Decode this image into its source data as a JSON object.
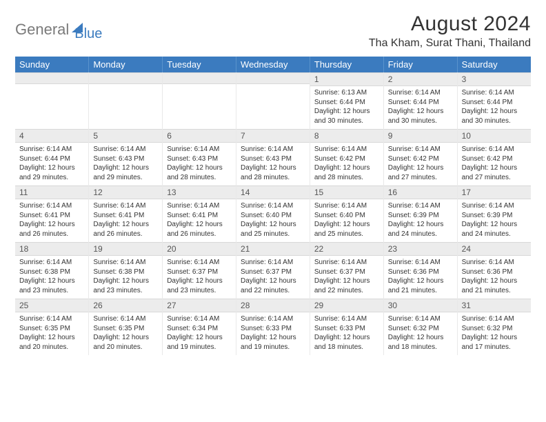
{
  "logo": {
    "part1": "General",
    "part2": "Blue"
  },
  "title": "August 2024",
  "location": "Tha Kham, Surat Thani, Thailand",
  "colors": {
    "header_bg": "#3b7bbf",
    "header_text": "#ffffff",
    "daynum_bg": "#ececec",
    "body_text": "#333333",
    "logo_gray": "#7a7a7a",
    "logo_blue": "#3b7bbf"
  },
  "day_labels": [
    "Sunday",
    "Monday",
    "Tuesday",
    "Wednesday",
    "Thursday",
    "Friday",
    "Saturday"
  ],
  "weeks": [
    [
      {
        "blank": true
      },
      {
        "blank": true
      },
      {
        "blank": true
      },
      {
        "blank": true
      },
      {
        "n": "1",
        "sunrise": "Sunrise: 6:13 AM",
        "sunset": "Sunset: 6:44 PM",
        "daylight": "Daylight: 12 hours and 30 minutes."
      },
      {
        "n": "2",
        "sunrise": "Sunrise: 6:14 AM",
        "sunset": "Sunset: 6:44 PM",
        "daylight": "Daylight: 12 hours and 30 minutes."
      },
      {
        "n": "3",
        "sunrise": "Sunrise: 6:14 AM",
        "sunset": "Sunset: 6:44 PM",
        "daylight": "Daylight: 12 hours and 30 minutes."
      }
    ],
    [
      {
        "n": "4",
        "sunrise": "Sunrise: 6:14 AM",
        "sunset": "Sunset: 6:44 PM",
        "daylight": "Daylight: 12 hours and 29 minutes."
      },
      {
        "n": "5",
        "sunrise": "Sunrise: 6:14 AM",
        "sunset": "Sunset: 6:43 PM",
        "daylight": "Daylight: 12 hours and 29 minutes."
      },
      {
        "n": "6",
        "sunrise": "Sunrise: 6:14 AM",
        "sunset": "Sunset: 6:43 PM",
        "daylight": "Daylight: 12 hours and 28 minutes."
      },
      {
        "n": "7",
        "sunrise": "Sunrise: 6:14 AM",
        "sunset": "Sunset: 6:43 PM",
        "daylight": "Daylight: 12 hours and 28 minutes."
      },
      {
        "n": "8",
        "sunrise": "Sunrise: 6:14 AM",
        "sunset": "Sunset: 6:42 PM",
        "daylight": "Daylight: 12 hours and 28 minutes."
      },
      {
        "n": "9",
        "sunrise": "Sunrise: 6:14 AM",
        "sunset": "Sunset: 6:42 PM",
        "daylight": "Daylight: 12 hours and 27 minutes."
      },
      {
        "n": "10",
        "sunrise": "Sunrise: 6:14 AM",
        "sunset": "Sunset: 6:42 PM",
        "daylight": "Daylight: 12 hours and 27 minutes."
      }
    ],
    [
      {
        "n": "11",
        "sunrise": "Sunrise: 6:14 AM",
        "sunset": "Sunset: 6:41 PM",
        "daylight": "Daylight: 12 hours and 26 minutes."
      },
      {
        "n": "12",
        "sunrise": "Sunrise: 6:14 AM",
        "sunset": "Sunset: 6:41 PM",
        "daylight": "Daylight: 12 hours and 26 minutes."
      },
      {
        "n": "13",
        "sunrise": "Sunrise: 6:14 AM",
        "sunset": "Sunset: 6:41 PM",
        "daylight": "Daylight: 12 hours and 26 minutes."
      },
      {
        "n": "14",
        "sunrise": "Sunrise: 6:14 AM",
        "sunset": "Sunset: 6:40 PM",
        "daylight": "Daylight: 12 hours and 25 minutes."
      },
      {
        "n": "15",
        "sunrise": "Sunrise: 6:14 AM",
        "sunset": "Sunset: 6:40 PM",
        "daylight": "Daylight: 12 hours and 25 minutes."
      },
      {
        "n": "16",
        "sunrise": "Sunrise: 6:14 AM",
        "sunset": "Sunset: 6:39 PM",
        "daylight": "Daylight: 12 hours and 24 minutes."
      },
      {
        "n": "17",
        "sunrise": "Sunrise: 6:14 AM",
        "sunset": "Sunset: 6:39 PM",
        "daylight": "Daylight: 12 hours and 24 minutes."
      }
    ],
    [
      {
        "n": "18",
        "sunrise": "Sunrise: 6:14 AM",
        "sunset": "Sunset: 6:38 PM",
        "daylight": "Daylight: 12 hours and 23 minutes."
      },
      {
        "n": "19",
        "sunrise": "Sunrise: 6:14 AM",
        "sunset": "Sunset: 6:38 PM",
        "daylight": "Daylight: 12 hours and 23 minutes."
      },
      {
        "n": "20",
        "sunrise": "Sunrise: 6:14 AM",
        "sunset": "Sunset: 6:37 PM",
        "daylight": "Daylight: 12 hours and 23 minutes."
      },
      {
        "n": "21",
        "sunrise": "Sunrise: 6:14 AM",
        "sunset": "Sunset: 6:37 PM",
        "daylight": "Daylight: 12 hours and 22 minutes."
      },
      {
        "n": "22",
        "sunrise": "Sunrise: 6:14 AM",
        "sunset": "Sunset: 6:37 PM",
        "daylight": "Daylight: 12 hours and 22 minutes."
      },
      {
        "n": "23",
        "sunrise": "Sunrise: 6:14 AM",
        "sunset": "Sunset: 6:36 PM",
        "daylight": "Daylight: 12 hours and 21 minutes."
      },
      {
        "n": "24",
        "sunrise": "Sunrise: 6:14 AM",
        "sunset": "Sunset: 6:36 PM",
        "daylight": "Daylight: 12 hours and 21 minutes."
      }
    ],
    [
      {
        "n": "25",
        "sunrise": "Sunrise: 6:14 AM",
        "sunset": "Sunset: 6:35 PM",
        "daylight": "Daylight: 12 hours and 20 minutes."
      },
      {
        "n": "26",
        "sunrise": "Sunrise: 6:14 AM",
        "sunset": "Sunset: 6:35 PM",
        "daylight": "Daylight: 12 hours and 20 minutes."
      },
      {
        "n": "27",
        "sunrise": "Sunrise: 6:14 AM",
        "sunset": "Sunset: 6:34 PM",
        "daylight": "Daylight: 12 hours and 19 minutes."
      },
      {
        "n": "28",
        "sunrise": "Sunrise: 6:14 AM",
        "sunset": "Sunset: 6:33 PM",
        "daylight": "Daylight: 12 hours and 19 minutes."
      },
      {
        "n": "29",
        "sunrise": "Sunrise: 6:14 AM",
        "sunset": "Sunset: 6:33 PM",
        "daylight": "Daylight: 12 hours and 18 minutes."
      },
      {
        "n": "30",
        "sunrise": "Sunrise: 6:14 AM",
        "sunset": "Sunset: 6:32 PM",
        "daylight": "Daylight: 12 hours and 18 minutes."
      },
      {
        "n": "31",
        "sunrise": "Sunrise: 6:14 AM",
        "sunset": "Sunset: 6:32 PM",
        "daylight": "Daylight: 12 hours and 17 minutes."
      }
    ]
  ]
}
